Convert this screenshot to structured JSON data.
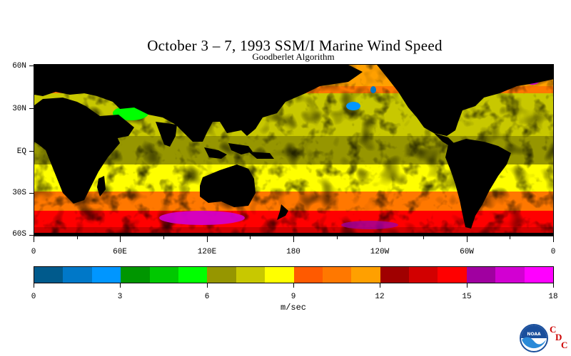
{
  "title": "October 3 – 7, 1993 SSM/I Marine Wind Speed",
  "subtitle": "Goodberlet Algorithm",
  "lat_labels": [
    "60N",
    "30N",
    "EQ",
    "30S",
    "60S"
  ],
  "lon_labels": [
    "0",
    "60E",
    "120E",
    "180",
    "120W",
    "60W",
    "0"
  ],
  "colorbar": {
    "units": "m/sec",
    "min": 0,
    "max": 18,
    "labels": [
      "0",
      "3",
      "6",
      "9",
      "12",
      "15",
      "18"
    ],
    "colors": [
      "#005a8c",
      "#0078c8",
      "#0096ff",
      "#009600",
      "#00c800",
      "#00ff00",
      "#969600",
      "#c8c800",
      "#ffff00",
      "#ff5a00",
      "#ff7800",
      "#ffa000",
      "#a00000",
      "#d20000",
      "#ff0000",
      "#a000a0",
      "#d200d2",
      "#ff00ff"
    ]
  },
  "logo": {
    "org": "NOAA",
    "letters": [
      "C",
      "D",
      "C"
    ]
  }
}
